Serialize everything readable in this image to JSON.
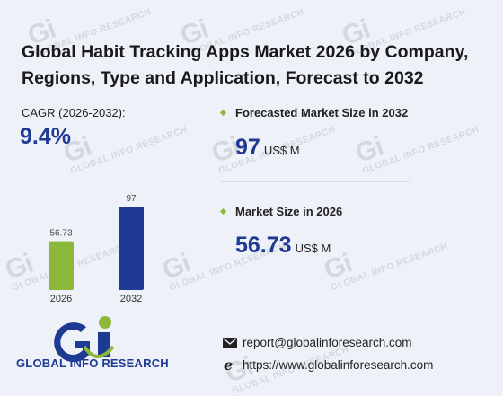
{
  "title": "Global Habit Tracking Apps Market 2026 by Company, Regions, Type and Application, Forecast to 2032",
  "cagr": {
    "label": "CAGR (2026-2032):",
    "value": "9.4%"
  },
  "forecast": {
    "label": "Forecasted Market Size in 2032",
    "value": "97",
    "unit": "US$ M"
  },
  "market": {
    "label": "Market Size in 2026",
    "value": "56.73",
    "unit": "US$ M"
  },
  "logo": {
    "text": "GLOBAL INFO RESEARCH"
  },
  "contact": {
    "email": "report@globalinforesearch.com",
    "website": "https://www.globalinforesearch.com"
  },
  "watermark": {
    "mark": "Gi",
    "text": "GLOBAL INFO RESEARCH"
  },
  "colors": {
    "bar_2026": "#8cb83a",
    "bar_2032": "#1f3a93",
    "accent": "#1f3a93"
  },
  "icons": [
    "email-icon",
    "web-icon",
    "bullet-icon"
  ],
  "chart_data": {
    "type": "bar",
    "categories": [
      "2026",
      "2032"
    ],
    "values": [
      56.73,
      97
    ],
    "data_labels": [
      "56.73",
      "97"
    ],
    "title": "",
    "xlabel": "",
    "ylabel": "",
    "ylim": [
      0,
      97
    ],
    "grid": false
  }
}
